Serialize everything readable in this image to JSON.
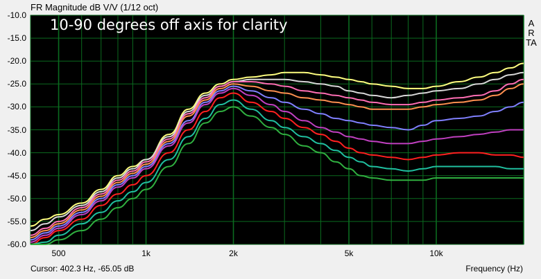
{
  "app": {
    "title": "FR Magnitude dB V/V (1/12 oct)",
    "cursor_readout": "Cursor: 402.3 Hz, -65.05 dB",
    "brand": "ARTA"
  },
  "colors": {
    "plot_bg": "#000000",
    "grid": "#0b6b1f",
    "frame": "#7a7a7a"
  },
  "chart_data": {
    "type": "line",
    "title": "FR Magnitude dB V/V (1/12 oct)",
    "annotation": "10-90 degrees off axis for clarity",
    "xlabel": "Frequency (Hz)",
    "ylabel": "",
    "x_scale": "log",
    "xlim": [
      400,
      20000
    ],
    "ylim": [
      -60,
      -10
    ],
    "x_ticks": [
      {
        "value": 500,
        "label": "500"
      },
      {
        "value": 1000,
        "label": "1k"
      },
      {
        "value": 2000,
        "label": "2k"
      },
      {
        "value": 5000,
        "label": "5k"
      },
      {
        "value": 10000,
        "label": "10k"
      }
    ],
    "y_ticks": [
      -10,
      -15,
      -20,
      -25,
      -30,
      -35,
      -40,
      -45,
      -50,
      -55,
      -60
    ],
    "y_tick_labels": [
      "-10.0",
      "-15.0",
      "-20.0",
      "-25.0",
      "-30.0",
      "-35.0",
      "-40.0",
      "-45.0",
      "-50.0",
      "-55.0",
      "-60.0"
    ],
    "grid": true,
    "x": [
      400,
      450,
      500,
      600,
      700,
      800,
      900,
      1000,
      1200,
      1400,
      1600,
      1800,
      2000,
      2300,
      2700,
      3000,
      3500,
      4000,
      4500,
      5000,
      5500,
      6000,
      7000,
      8000,
      9000,
      10000,
      12000,
      14000,
      16000,
      18000,
      20000
    ],
    "series": [
      {
        "color": "#ffff80",
        "values": [
          -56,
          -54.5,
          -53.5,
          -51,
          -48,
          -45,
          -43,
          -41.5,
          -36,
          -30.5,
          -27,
          -25,
          -24,
          -23.5,
          -23,
          -22.5,
          -22.5,
          -23,
          -23.5,
          -24,
          -24.5,
          -25,
          -25.5,
          -26,
          -26,
          -25.5,
          -24.5,
          -23.5,
          -22.5,
          -21.5,
          -20.5
        ]
      },
      {
        "color": "#d8d8d8",
        "values": [
          -57,
          -55.5,
          -54,
          -51.5,
          -48.5,
          -45.5,
          -43.5,
          -41.5,
          -36.5,
          -31,
          -27.5,
          -25.5,
          -24.5,
          -24,
          -24,
          -24,
          -24.5,
          -25,
          -25.5,
          -26.5,
          -27,
          -27.5,
          -28,
          -27.5,
          -27,
          -26.5,
          -26,
          -25,
          -24,
          -23,
          -22.5
        ]
      },
      {
        "color": "#ff6eb4",
        "values": [
          -58,
          -56.5,
          -55,
          -52,
          -49,
          -46,
          -44,
          -42,
          -37,
          -31.5,
          -28,
          -25.5,
          -24.5,
          -24.5,
          -25,
          -25.5,
          -26.5,
          -27,
          -27.5,
          -28,
          -28.5,
          -29,
          -29.5,
          -29.5,
          -29,
          -28.5,
          -28,
          -27.5,
          -26.5,
          -25,
          -24
        ]
      },
      {
        "color": "#ff9050",
        "values": [
          -58.5,
          -57,
          -55.5,
          -52.5,
          -49.5,
          -46.5,
          -44.5,
          -42.5,
          -37.5,
          -32,
          -28.5,
          -26,
          -25,
          -25.5,
          -26.5,
          -27,
          -28,
          -28.5,
          -29,
          -29.5,
          -30,
          -30.5,
          -30.5,
          -30.5,
          -30,
          -29.5,
          -29,
          -28.5,
          -27.5,
          -26,
          -25
        ]
      },
      {
        "color": "#8080ff",
        "values": [
          -59,
          -57.5,
          -56,
          -53,
          -50,
          -47,
          -45,
          -43,
          -38,
          -33,
          -29,
          -26.5,
          -25.5,
          -26.5,
          -28,
          -29,
          -30.5,
          -31.5,
          -32.5,
          -33,
          -33.5,
          -34,
          -34.5,
          -35,
          -34,
          -33,
          -32.5,
          -32,
          -31,
          -30,
          -29
        ]
      },
      {
        "color": "#c040c0",
        "values": [
          -59.5,
          -58,
          -56.5,
          -53.5,
          -50.5,
          -47.5,
          -45.5,
          -43.5,
          -38.5,
          -33.5,
          -29.5,
          -27,
          -26,
          -27.5,
          -29.5,
          -31,
          -33,
          -34.5,
          -35.5,
          -36.5,
          -37,
          -37.5,
          -38,
          -38,
          -37.5,
          -37,
          -36.5,
          -36,
          -35.5,
          -35,
          -35
        ]
      },
      {
        "color": "#ff2020",
        "values": [
          -60,
          -58.5,
          -57,
          -54.5,
          -51.5,
          -49,
          -47,
          -45,
          -40,
          -35,
          -31,
          -28,
          -27,
          -29,
          -31,
          -32.5,
          -34.5,
          -36,
          -37.5,
          -39,
          -40,
          -40.5,
          -41,
          -41.5,
          -41,
          -40.5,
          -40,
          -40,
          -40.5,
          -40.5,
          -41
        ]
      },
      {
        "color": "#20c0a0",
        "values": [
          -60,
          -59.5,
          -58,
          -55.5,
          -53,
          -50.5,
          -48.5,
          -46.5,
          -41.5,
          -36.5,
          -32.5,
          -29.5,
          -28.5,
          -30.5,
          -33,
          -34.5,
          -36.5,
          -38,
          -39.5,
          -41,
          -42,
          -43,
          -43.5,
          -44,
          -43.5,
          -43,
          -43,
          -43,
          -43,
          -43.5,
          -43.5
        ]
      },
      {
        "color": "#30b040",
        "values": [
          -60,
          -60,
          -59,
          -57,
          -54.5,
          -52,
          -50,
          -48,
          -43,
          -38,
          -33.5,
          -31,
          -30,
          -32,
          -34.5,
          -36,
          -38.5,
          -40,
          -42,
          -43.5,
          -45,
          -45.5,
          -46,
          -46,
          -46,
          -45.5,
          -45.5,
          -45.5,
          -45.5,
          -45.5,
          -45.5
        ]
      }
    ]
  }
}
